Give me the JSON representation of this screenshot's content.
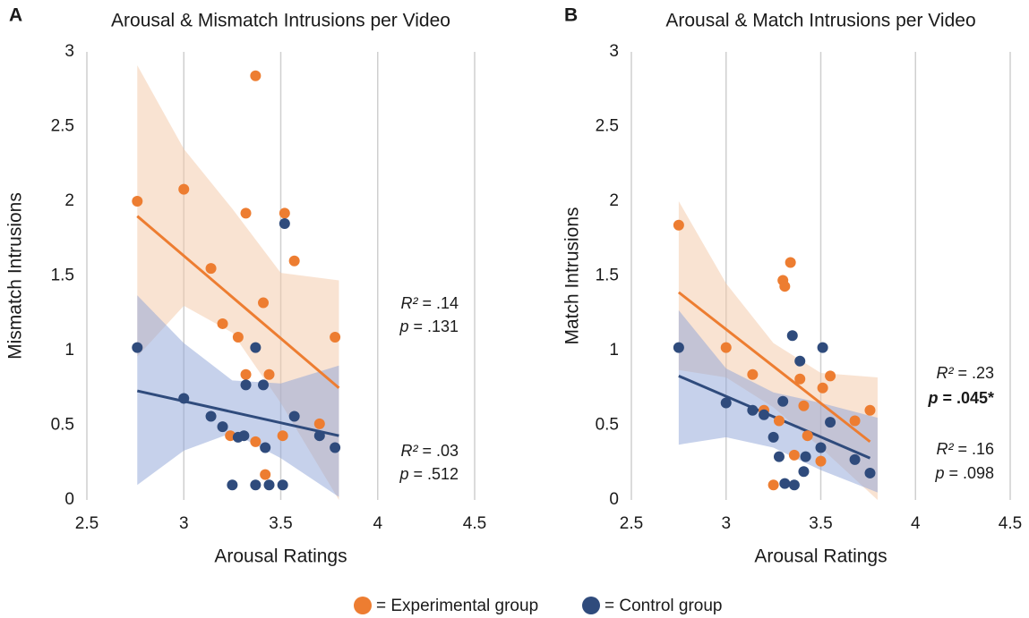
{
  "chart_data": [
    {
      "type": "scatter",
      "panel_label": "A",
      "title": "Arousal & Mismatch Intrusions per Video",
      "x_label": "Arousal Ratings",
      "y_label": "Mismatch Intrusions",
      "xlim": [
        2.5,
        4.5
      ],
      "ylim": [
        0,
        3
      ],
      "xticks": [
        2.5,
        3,
        3.5,
        4,
        4.5
      ],
      "yticks": [
        0,
        0.5,
        1,
        1.5,
        2,
        2.5,
        3
      ],
      "grid": "x",
      "series": [
        {
          "name": "= Experimental group",
          "color": "#ED7D31",
          "band_color": "#F4C7A6",
          "x": [
            2.76,
            3.0,
            3.14,
            3.32,
            3.37,
            3.52,
            3.57,
            3.41,
            3.2,
            3.28,
            3.32,
            3.44,
            3.24,
            3.37,
            3.51,
            3.42,
            3.7,
            3.78
          ],
          "y": [
            2.0,
            2.08,
            1.55,
            1.92,
            2.84,
            1.92,
            1.6,
            1.32,
            1.18,
            1.09,
            0.84,
            0.84,
            0.43,
            0.39,
            0.43,
            0.17,
            0.51,
            1.09
          ],
          "fit": {
            "x": [
              2.76,
              3.8
            ],
            "y": [
              1.9,
              0.75
            ]
          },
          "band": {
            "x": [
              2.76,
              3.0,
              3.25,
              3.5,
              3.8
            ],
            "upper": [
              2.91,
              2.35,
              1.95,
              1.52,
              1.47
            ],
            "lower": [
              0.96,
              1.3,
              1.12,
              0.65,
              0.0
            ]
          }
        },
        {
          "name": "= Control group",
          "color": "#2F4B7C",
          "band_color": "#8EA4D8",
          "x": [
            2.76,
            3.0,
            3.14,
            3.2,
            3.28,
            3.31,
            3.37,
            3.32,
            3.41,
            3.42,
            3.52,
            3.57,
            3.7,
            3.78,
            3.25,
            3.37,
            3.44,
            3.51
          ],
          "y": [
            1.02,
            0.68,
            0.56,
            0.49,
            0.42,
            0.43,
            1.02,
            0.77,
            0.77,
            0.35,
            1.85,
            0.56,
            0.43,
            0.35,
            0.1,
            0.1,
            0.1,
            0.1
          ],
          "fit": {
            "x": [
              2.76,
              3.8
            ],
            "y": [
              0.73,
              0.43
            ]
          },
          "band": {
            "x": [
              2.76,
              3.0,
              3.25,
              3.5,
              3.8
            ],
            "upper": [
              1.37,
              1.05,
              0.8,
              0.78,
              0.9
            ],
            "lower": [
              0.1,
              0.33,
              0.45,
              0.28,
              0.02
            ]
          }
        }
      ],
      "annotations": [
        {
          "lhs": "R²",
          "rhs": "= .14"
        },
        {
          "lhs": "p",
          "rhs": "= .131"
        },
        {
          "lhs": "R²",
          "rhs": "= .03"
        },
        {
          "lhs": "p",
          "rhs": "= .512"
        }
      ]
    },
    {
      "type": "scatter",
      "panel_label": "B",
      "title": "Arousal & Match Intrusions per Video",
      "x_label": "Arousal Ratings",
      "y_label": "Match Intrusions",
      "xlim": [
        2.5,
        4.5
      ],
      "ylim": [
        0,
        3
      ],
      "xticks": [
        2.5,
        3,
        3.5,
        4,
        4.5
      ],
      "yticks": [
        0,
        0.5,
        1,
        1.5,
        2,
        2.5,
        3
      ],
      "grid": "x",
      "series": [
        {
          "name": "= Experimental group",
          "color": "#ED7D31",
          "band_color": "#F4C7A6",
          "x": [
            2.75,
            3.0,
            3.14,
            3.2,
            3.3,
            3.31,
            3.34,
            3.39,
            3.41,
            3.43,
            3.28,
            3.36,
            3.25,
            3.51,
            3.55,
            3.5,
            3.68,
            3.76
          ],
          "y": [
            1.84,
            1.02,
            0.84,
            0.6,
            1.47,
            1.43,
            1.59,
            0.81,
            0.63,
            0.43,
            0.53,
            0.3,
            0.1,
            0.75,
            0.83,
            0.26,
            0.53,
            0.6
          ],
          "fit": {
            "x": [
              2.75,
              3.76
            ],
            "y": [
              1.39,
              0.39
            ]
          },
          "band": {
            "x": [
              2.75,
              3.0,
              3.25,
              3.5,
              3.8
            ],
            "upper": [
              2.0,
              1.45,
              1.05,
              0.85,
              0.82
            ],
            "lower": [
              0.87,
              0.82,
              0.62,
              0.35,
              0.0
            ]
          }
        },
        {
          "name": "= Control group",
          "color": "#2F4B7C",
          "band_color": "#8EA4D8",
          "x": [
            2.75,
            3.0,
            3.14,
            3.2,
            3.25,
            3.3,
            3.35,
            3.39,
            3.28,
            3.42,
            3.41,
            3.31,
            3.36,
            3.5,
            3.51,
            3.55,
            3.68,
            3.76
          ],
          "y": [
            1.02,
            0.65,
            0.6,
            0.57,
            0.42,
            0.66,
            1.1,
            0.93,
            0.29,
            0.29,
            0.19,
            0.11,
            0.1,
            0.35,
            1.02,
            0.52,
            0.27,
            0.18
          ],
          "fit": {
            "x": [
              2.75,
              3.76
            ],
            "y": [
              0.83,
              0.28
            ]
          },
          "band": {
            "x": [
              2.75,
              3.0,
              3.25,
              3.5,
              3.8
            ],
            "upper": [
              1.27,
              0.88,
              0.72,
              0.65,
              0.55
            ],
            "lower": [
              0.37,
              0.42,
              0.35,
              0.2,
              0.05
            ]
          }
        }
      ],
      "annotations": [
        {
          "lhs": "R²",
          "rhs": "= .23"
        },
        {
          "lhs": "p",
          "rhs": "= .045*",
          "bold": true
        },
        {
          "lhs": "R²",
          "rhs": "= .16"
        },
        {
          "lhs": "p",
          "rhs": "= .098"
        }
      ]
    }
  ]
}
